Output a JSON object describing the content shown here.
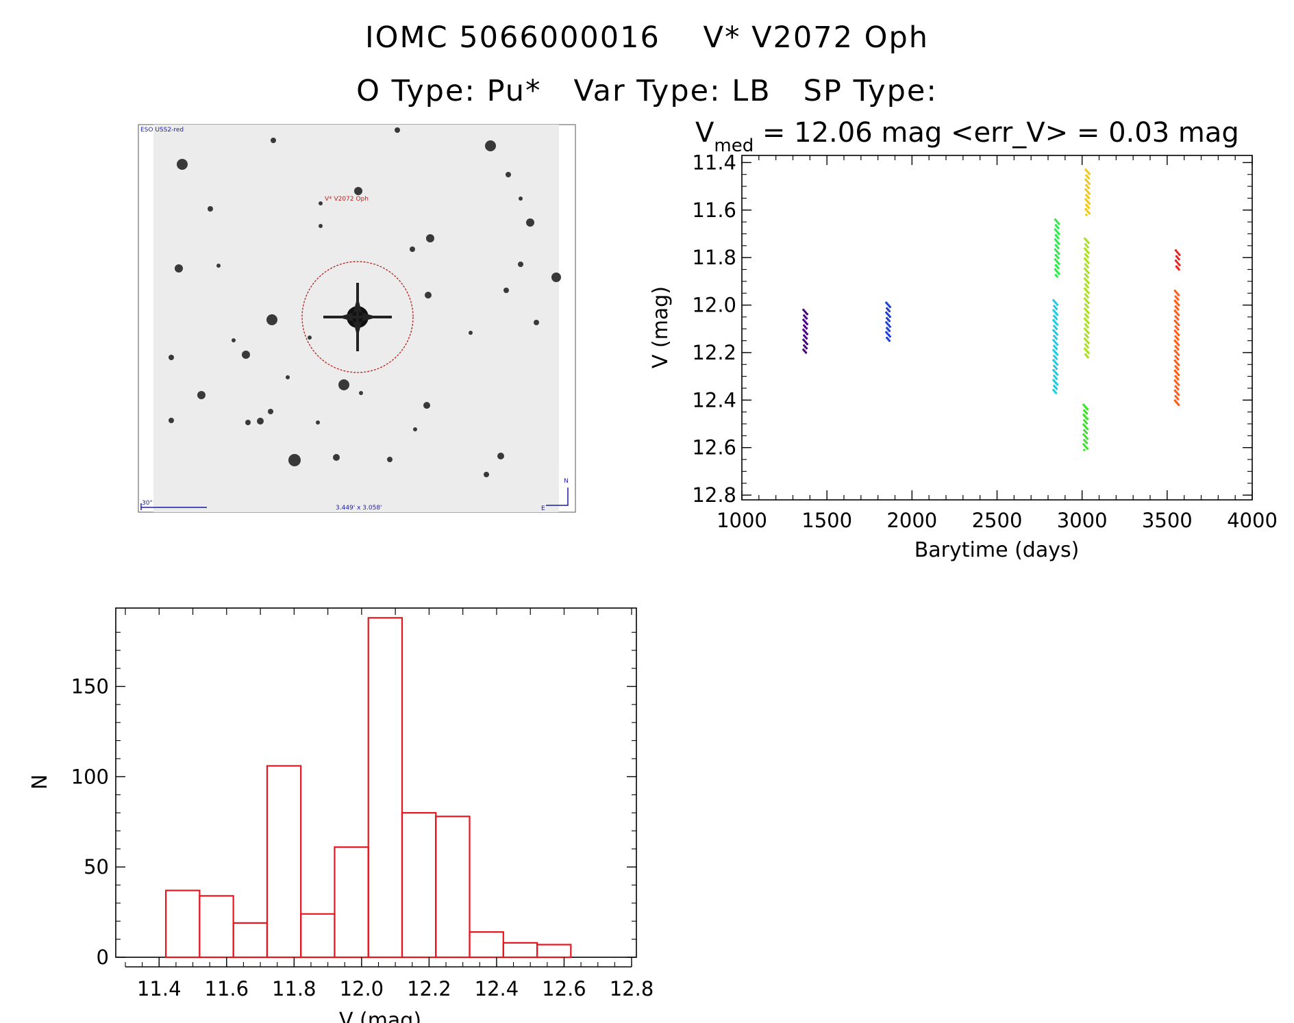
{
  "header": {
    "line1": "IOMC 5066000016    V* V2072 Oph",
    "line2": "O Type: Pu*   Var Type: LB   SP Type:"
  },
  "sky_image": {
    "survey_label": "ESO USS2-red",
    "target_label": "V* V2072 Oph",
    "scale_label": "30\"",
    "fov_label": "3.449' x 3.058'",
    "north_label": "N",
    "east_label": "E"
  },
  "light_curve": {
    "stats_prefix": "V",
    "stats_sub": "med",
    "stats_rest": " = 12.06 mag <err_V> = 0.03 mag"
  },
  "colors": {
    "hist": "#e8141e",
    "aperture": "#b22222",
    "compass": "#1a1aa6"
  },
  "chart_data": [
    {
      "type": "scatter",
      "title": "V med = 12.06 mag <err_V> = 0.03 mag",
      "xlabel": "Barytime (days)",
      "ylabel": "V (mag)",
      "xlim": [
        1000,
        4000
      ],
      "ylim": [
        12.82,
        11.37
      ],
      "y_inverted": true,
      "xticks": [
        1000,
        1500,
        2000,
        2500,
        3000,
        3500,
        4000
      ],
      "yticks": [
        11.4,
        11.6,
        11.8,
        12.0,
        12.2,
        12.4,
        12.6,
        12.8
      ],
      "series": [
        {
          "color": "#4b0082",
          "x": 1373,
          "ymin": 12.02,
          "ymax": 12.2
        },
        {
          "color": "#1f3fd8",
          "x": 1860,
          "ymin": 11.99,
          "ymax": 12.15
        },
        {
          "color": "#22c8e0",
          "x": 2843,
          "ymin": 11.98,
          "ymax": 12.37
        },
        {
          "color": "#2ce84a",
          "x": 2853,
          "ymin": 11.64,
          "ymax": 11.88
        },
        {
          "color": "#3ce02c",
          "x": 3020,
          "ymin": 12.42,
          "ymax": 12.61
        },
        {
          "color": "#a8e020",
          "x": 3027,
          "ymin": 11.72,
          "ymax": 12.22
        },
        {
          "color": "#f0c814",
          "x": 3032,
          "ymin": 11.43,
          "ymax": 11.62
        },
        {
          "color": "#ff5a14",
          "x": 3557,
          "ymin": 11.94,
          "ymax": 12.42
        },
        {
          "color": "#e82020",
          "x": 3562,
          "ymin": 11.77,
          "ymax": 11.85
        }
      ]
    },
    {
      "type": "bar",
      "title": "",
      "xlabel": "V (mag)",
      "ylabel": "N",
      "xlim": [
        11.3,
        12.8
      ],
      "ylim": [
        0,
        190
      ],
      "xticks": [
        11.4,
        11.6,
        11.8,
        12.0,
        12.2,
        12.4,
        12.6,
        12.8
      ],
      "yticks": [
        0,
        50,
        100,
        150
      ],
      "bin_edges": [
        11.42,
        11.52,
        11.62,
        11.72,
        11.82,
        11.92,
        12.02,
        12.12,
        12.22,
        12.32,
        12.42,
        12.52,
        12.62
      ],
      "values": [
        37,
        34,
        19,
        106,
        24,
        61,
        188,
        80,
        78,
        14,
        8,
        7
      ]
    }
  ]
}
